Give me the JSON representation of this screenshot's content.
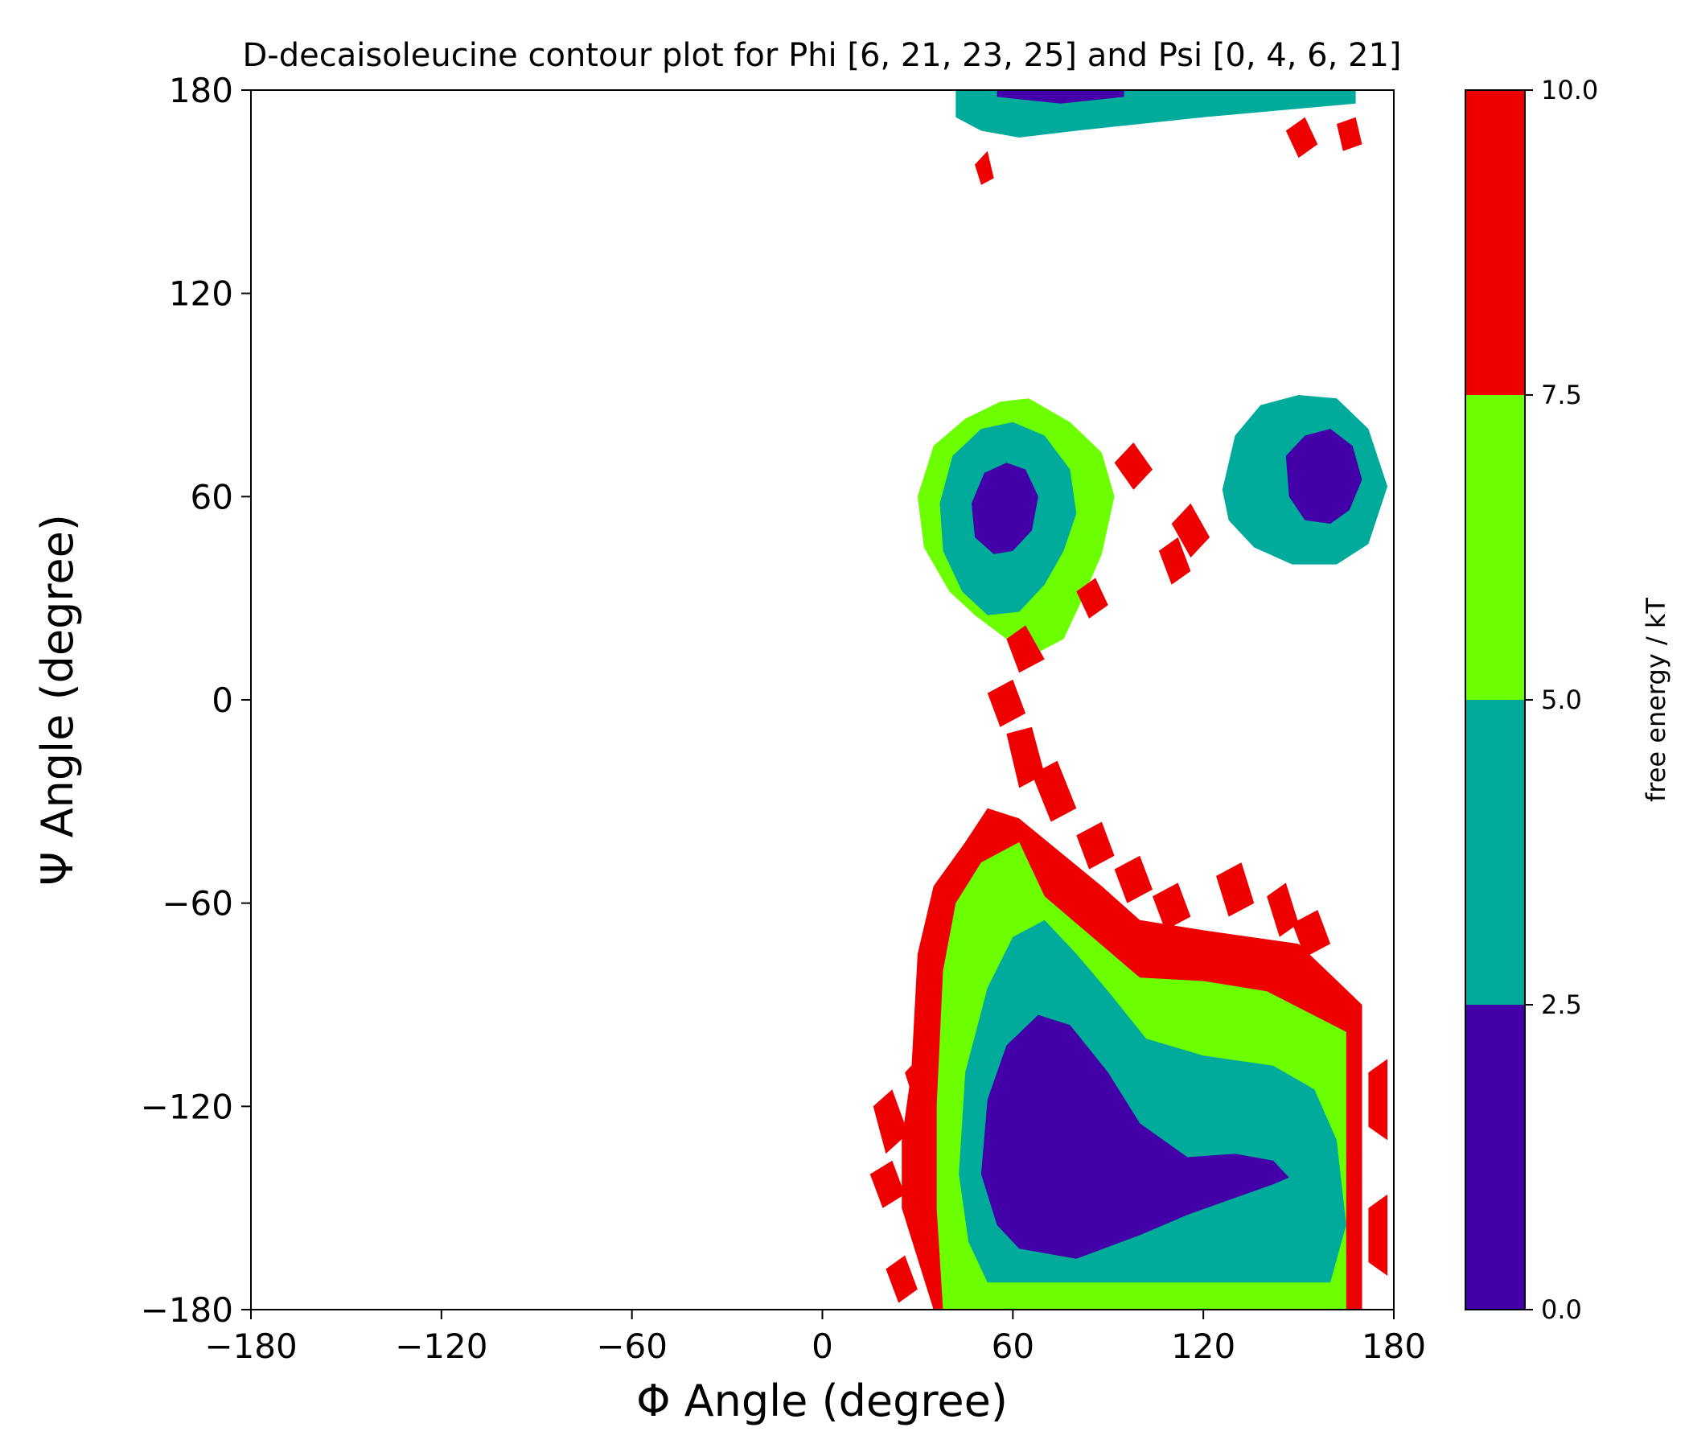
{
  "chart_data": {
    "type": "contour",
    "title": "D-decaisoleucine contour plot for Phi [6, 21, 23, 25] and Psi [0, 4, 6, 21]",
    "xlabel": "Φ Angle (degree)",
    "ylabel": "Ψ Angle (degree)",
    "xlim": [
      -180,
      180
    ],
    "ylim": [
      -180,
      180
    ],
    "xticks": [
      -180,
      -120,
      -60,
      0,
      60,
      120,
      180
    ],
    "yticks": [
      -180,
      -120,
      -60,
      0,
      60,
      120,
      180
    ],
    "xtick_labels": [
      "−180",
      "−120",
      "−60",
      "0",
      "60",
      "120",
      "180"
    ],
    "ytick_labels": [
      "−180",
      "−120",
      "−60",
      "0",
      "60",
      "120",
      "180"
    ],
    "grid": false,
    "colorbar": {
      "label": "free energy / kT",
      "levels": [
        0.0,
        2.5,
        5.0,
        7.5,
        10.0
      ],
      "level_labels": [
        "0.0",
        "2.5",
        "5.0",
        "7.5",
        "10.0"
      ],
      "colors": [
        "#4400a8",
        "#00ab9b",
        "#6cff00",
        "#ee0000"
      ]
    },
    "basins": [
      {
        "center": [
          80,
          -135
        ],
        "contours": [
          [
            [
              35,
              -180
            ],
            [
              170,
              -180
            ],
            [
              170,
              -90
            ],
            [
              150,
              -72
            ],
            [
              120,
              -68
            ],
            [
              100,
              -65
            ],
            [
              88,
              -55
            ],
            [
              75,
              -45
            ],
            [
              62,
              -35
            ],
            [
              52,
              -32
            ],
            [
              45,
              -42
            ],
            [
              35,
              -55
            ],
            [
              30,
              -75
            ],
            [
              28,
              -110
            ],
            [
              25,
              -130
            ],
            [
              25,
              -150
            ],
            [
              30,
              -165
            ]
          ],
          [
            [
              38,
              -180
            ],
            [
              165,
              -180
            ],
            [
              165,
              -98
            ],
            [
              140,
              -86
            ],
            [
              120,
              -83
            ],
            [
              100,
              -82
            ],
            [
              85,
              -70
            ],
            [
              70,
              -58
            ],
            [
              62,
              -42
            ],
            [
              50,
              -48
            ],
            [
              42,
              -60
            ],
            [
              38,
              -80
            ],
            [
              36,
              -120
            ],
            [
              36,
              -150
            ]
          ],
          [
            [
              52,
              -172
            ],
            [
              160,
              -172
            ],
            [
              165,
              -155
            ],
            [
              162,
              -130
            ],
            [
              155,
              -115
            ],
            [
              142,
              -108
            ],
            [
              120,
              -105
            ],
            [
              102,
              -100
            ],
            [
              90,
              -86
            ],
            [
              80,
              -75
            ],
            [
              70,
              -65
            ],
            [
              60,
              -70
            ],
            [
              52,
              -85
            ],
            [
              45,
              -110
            ],
            [
              43,
              -140
            ],
            [
              46,
              -160
            ]
          ],
          [
            [
              62,
              -162
            ],
            [
              80,
              -165
            ],
            [
              100,
              -158
            ],
            [
              115,
              -152
            ],
            [
              130,
              -147
            ],
            [
              142,
              -143
            ],
            [
              147,
              -141
            ],
            [
              142,
              -136
            ],
            [
              130,
              -134
            ],
            [
              115,
              -135
            ],
            [
              100,
              -125
            ],
            [
              90,
              -110
            ],
            [
              78,
              -96
            ],
            [
              68,
              -93
            ],
            [
              58,
              -102
            ],
            [
              52,
              -118
            ],
            [
              50,
              -140
            ],
            [
              55,
              -155
            ]
          ]
        ]
      },
      {
        "center": [
          58,
          55
        ],
        "contours": [
          [
            [
              30,
              60
            ],
            [
              35,
              75
            ],
            [
              45,
              83
            ],
            [
              56,
              88
            ],
            [
              65,
              89
            ],
            [
              78,
              82
            ],
            [
              88,
              73
            ],
            [
              92,
              60
            ],
            [
              88,
              43
            ],
            [
              82,
              30
            ],
            [
              76,
              18
            ],
            [
              68,
              14
            ],
            [
              58,
              18
            ],
            [
              48,
              25
            ],
            [
              40,
              32
            ],
            [
              32,
              45
            ]
          ],
          [
            [
              37,
              58
            ],
            [
              41,
              72
            ],
            [
              50,
              80
            ],
            [
              60,
              82
            ],
            [
              70,
              78
            ],
            [
              78,
              68
            ],
            [
              80,
              55
            ],
            [
              76,
              44
            ],
            [
              70,
              34
            ],
            [
              62,
              26
            ],
            [
              52,
              25
            ],
            [
              44,
              32
            ],
            [
              38,
              44
            ]
          ],
          [
            [
              47,
              58
            ],
            [
              51,
              67
            ],
            [
              58,
              70
            ],
            [
              64,
              68
            ],
            [
              68,
              60
            ],
            [
              66,
              50
            ],
            [
              60,
              44
            ],
            [
              54,
              43
            ],
            [
              48,
              48
            ]
          ]
        ]
      },
      {
        "center": [
          155,
          66
        ],
        "contours": [
          [
            [
              126,
              62
            ],
            [
              130,
              78
            ],
            [
              138,
              87
            ],
            [
              150,
              90
            ],
            [
              162,
              89
            ],
            [
              172,
              80
            ],
            [
              178,
              63
            ],
            [
              172,
              46
            ],
            [
              162,
              40
            ],
            [
              148,
              40
            ],
            [
              136,
              45
            ],
            [
              128,
              53
            ]
          ],
          [
            [
              146,
              72
            ],
            [
              152,
              78
            ],
            [
              160,
              80
            ],
            [
              167,
              75
            ],
            [
              170,
              65
            ],
            [
              166,
              56
            ],
            [
              160,
              52
            ],
            [
              152,
              53
            ],
            [
              147,
              60
            ]
          ]
        ]
      },
      {
        "center": [
          65,
          178
        ],
        "contours": [
          [
            [
              42,
              172
            ],
            [
              42,
              180
            ],
            [
              168,
              180
            ],
            [
              168,
              176
            ],
            [
              120,
              172
            ],
            [
              100,
              170
            ],
            [
              80,
              168
            ],
            [
              62,
              166
            ],
            [
              50,
              168
            ]
          ],
          [
            [
              55,
              178
            ],
            [
              55,
              180
            ],
            [
              95,
              180
            ],
            [
              95,
              178
            ],
            [
              75,
              176
            ]
          ]
        ]
      }
    ],
    "scattered_high_energy_fragments": [
      [
        [
          80,
          32
        ],
        [
          86,
          36
        ],
        [
          90,
          28
        ],
        [
          84,
          24
        ]
      ],
      [
        [
          92,
          70
        ],
        [
          98,
          76
        ],
        [
          104,
          68
        ],
        [
          98,
          62
        ]
      ],
      [
        [
          110,
          52
        ],
        [
          116,
          58
        ],
        [
          122,
          48
        ],
        [
          116,
          42
        ]
      ],
      [
        [
          106,
          44
        ],
        [
          112,
          48
        ],
        [
          116,
          38
        ],
        [
          110,
          34
        ]
      ],
      [
        [
          58,
          18
        ],
        [
          64,
          22
        ],
        [
          70,
          12
        ],
        [
          62,
          8
        ]
      ],
      [
        [
          52,
          2
        ],
        [
          60,
          6
        ],
        [
          64,
          -4
        ],
        [
          56,
          -8
        ]
      ],
      [
        [
          58,
          -10
        ],
        [
          66,
          -8
        ],
        [
          70,
          -22
        ],
        [
          62,
          -26
        ]
      ],
      [
        [
          66,
          -22
        ],
        [
          74,
          -18
        ],
        [
          80,
          -32
        ],
        [
          72,
          -36
        ]
      ],
      [
        [
          80,
          -40
        ],
        [
          88,
          -36
        ],
        [
          92,
          -46
        ],
        [
          84,
          -50
        ]
      ],
      [
        [
          92,
          -50
        ],
        [
          100,
          -46
        ],
        [
          104,
          -56
        ],
        [
          96,
          -60
        ]
      ],
      [
        [
          104,
          -58
        ],
        [
          112,
          -54
        ],
        [
          116,
          -64
        ],
        [
          108,
          -68
        ]
      ],
      [
        [
          124,
          -52
        ],
        [
          132,
          -48
        ],
        [
          136,
          -60
        ],
        [
          128,
          -64
        ]
      ],
      [
        [
          140,
          -58
        ],
        [
          146,
          -54
        ],
        [
          150,
          -66
        ],
        [
          144,
          -70
        ]
      ],
      [
        [
          148,
          -66
        ],
        [
          156,
          -62
        ],
        [
          160,
          -72
        ],
        [
          152,
          -76
        ]
      ],
      [
        [
          16,
          -120
        ],
        [
          22,
          -115
        ],
        [
          27,
          -128
        ],
        [
          20,
          -134
        ]
      ],
      [
        [
          15,
          -140
        ],
        [
          22,
          -136
        ],
        [
          26,
          -146
        ],
        [
          19,
          -150
        ]
      ],
      [
        [
          20,
          -168
        ],
        [
          26,
          -164
        ],
        [
          30,
          -174
        ],
        [
          24,
          -178
        ]
      ],
      [
        [
          26,
          -110
        ],
        [
          32,
          -104
        ],
        [
          36,
          -116
        ],
        [
          30,
          -122
        ]
      ],
      [
        [
          172,
          -110
        ],
        [
          178,
          -106
        ],
        [
          178,
          -130
        ],
        [
          172,
          -126
        ]
      ],
      [
        [
          172,
          -150
        ],
        [
          178,
          -146
        ],
        [
          178,
          -170
        ],
        [
          172,
          -166
        ]
      ],
      [
        [
          48,
          158
        ],
        [
          52,
          162
        ],
        [
          54,
          154
        ],
        [
          50,
          152
        ]
      ],
      [
        [
          146,
          168
        ],
        [
          152,
          172
        ],
        [
          156,
          164
        ],
        [
          150,
          160
        ]
      ],
      [
        [
          162,
          170
        ],
        [
          168,
          172
        ],
        [
          170,
          164
        ],
        [
          164,
          162
        ]
      ]
    ]
  }
}
